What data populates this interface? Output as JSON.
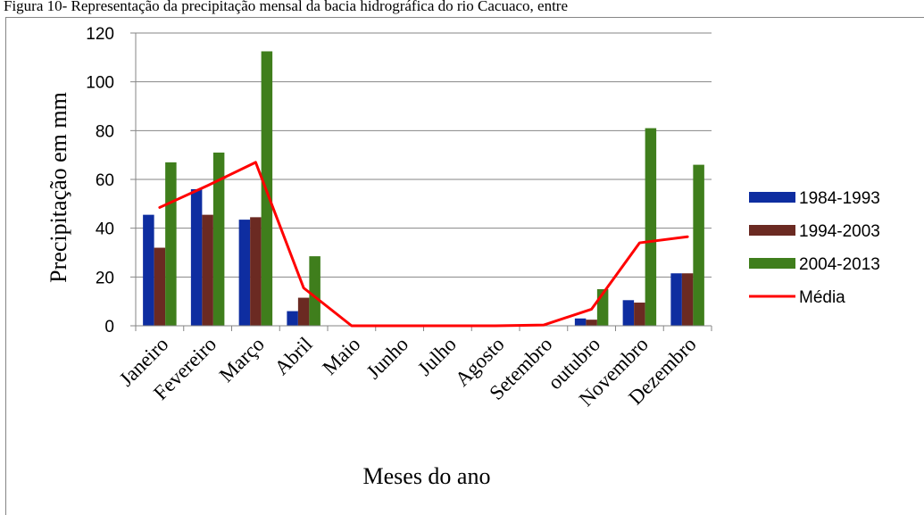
{
  "caption": "Figura 10- Representação da precipitação mensal da bacia hidrográfica do rio Cacuaco, entre",
  "chart_data": {
    "type": "bar",
    "title": "",
    "xlabel": "Meses do ano",
    "ylabel": "Precipitação em mm",
    "ylim": [
      0,
      120
    ],
    "yticks": [
      0,
      20,
      40,
      60,
      80,
      100,
      120
    ],
    "grid": "horizontal",
    "legend_position": "right",
    "categories": [
      "Janeiro",
      "Fevereiro",
      "Março",
      "Abril",
      "Maio",
      "Junho",
      "Julho",
      "Agosto",
      "Setembro",
      "outubro",
      "Novembro",
      "Dezembro"
    ],
    "series": [
      {
        "name": "1984-1993",
        "type": "bar",
        "color": "#0E2DA0",
        "values": [
          45.5,
          56,
          43.5,
          6,
          0,
          0,
          0,
          0,
          0,
          3,
          10.5,
          21.5
        ]
      },
      {
        "name": "1994-2003",
        "type": "bar",
        "color": "#6B2A22",
        "values": [
          32,
          45.5,
          44.5,
          11.5,
          0,
          0,
          0,
          0,
          0,
          2.5,
          9.5,
          21.5
        ]
      },
      {
        "name": "2004-2013",
        "type": "bar",
        "color": "#3F7E1C",
        "values": [
          67,
          71,
          112.5,
          28.5,
          0,
          0,
          0,
          0,
          0,
          15,
          81,
          66
        ]
      },
      {
        "name": "Média",
        "type": "line",
        "color": "#FF0000",
        "values": [
          48.5,
          57.5,
          67,
          15.5,
          0,
          0,
          0,
          0,
          0.3,
          6.8,
          34,
          36.5
        ]
      }
    ]
  }
}
